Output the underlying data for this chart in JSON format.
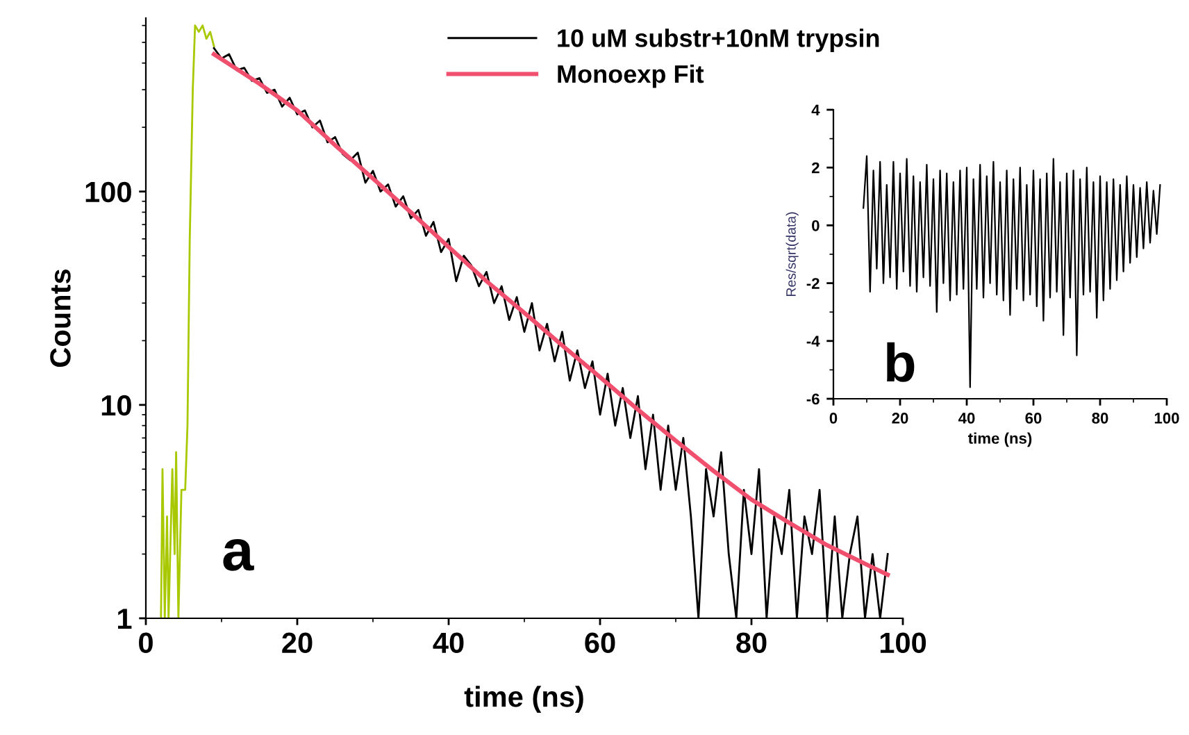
{
  "chart_data": [
    {
      "type": "line",
      "xlabel": "time (ns)",
      "ylabel": "Counts",
      "log": "y",
      "xlim": [
        0,
        100
      ],
      "ylim": [
        1,
        650
      ],
      "xticks": [
        0,
        20,
        40,
        60,
        80,
        100
      ],
      "yticks": [
        1,
        10,
        100
      ],
      "legend": "top right",
      "grid": false,
      "annotations": [
        "a"
      ],
      "series": [
        {
          "color": "#a8c800",
          "x": [
            2,
            2.2,
            2.5,
            2.8,
            3,
            3.5,
            3.8,
            4,
            4.3,
            4.7,
            5.2,
            5.5,
            5.8,
            6.2,
            6.5,
            7,
            7.5,
            8,
            8.5,
            9
          ],
          "values": [
            1,
            5,
            1,
            3,
            1,
            5,
            2,
            6,
            1,
            4,
            4,
            8,
            60,
            300,
            600,
            560,
            600,
            520,
            560,
            480
          ]
        },
        {
          "name": "10 uM substr+10nM trypsin",
          "color": "#000000",
          "x": [
            9,
            10,
            11,
            12,
            13,
            14,
            15,
            16,
            17,
            18,
            19,
            20,
            21,
            22,
            23,
            24,
            25,
            26,
            27,
            28,
            29,
            30,
            31,
            32,
            33,
            34,
            35,
            36,
            37,
            38,
            39,
            40,
            41,
            42,
            43,
            44,
            45,
            46,
            47,
            48,
            49,
            50,
            51,
            52,
            53,
            54,
            55,
            56,
            57,
            58,
            59,
            60,
            61,
            62,
            63,
            64,
            65,
            66,
            67,
            68,
            69,
            70,
            71,
            72,
            73,
            74,
            75,
            76,
            77,
            78,
            79,
            80,
            81,
            82,
            83,
            84,
            85,
            86,
            87,
            88,
            89,
            90,
            91,
            92,
            93,
            94,
            95,
            96,
            97,
            98
          ],
          "values": [
            470,
            420,
            440,
            370,
            380,
            330,
            340,
            290,
            300,
            250,
            275,
            230,
            240,
            200,
            215,
            170,
            180,
            150,
            140,
            152,
            110,
            125,
            100,
            108,
            85,
            95,
            75,
            82,
            62,
            72,
            52,
            60,
            38,
            50,
            45,
            36,
            42,
            30,
            36,
            25,
            32,
            22,
            30,
            18,
            24,
            16,
            22,
            13,
            18,
            12,
            16,
            9,
            14,
            8,
            12,
            7,
            11,
            5,
            9,
            4,
            8,
            4,
            7,
            3,
            1,
            5,
            3,
            6,
            2,
            1,
            4,
            2,
            5,
            1,
            3,
            2,
            4,
            1,
            3,
            2,
            4,
            1,
            3,
            1,
            2,
            3,
            1,
            2,
            1,
            2
          ]
        },
        {
          "name": "Monoexp Fit",
          "color": "#f0506e",
          "x": [
            9,
            15,
            20,
            25,
            30,
            35,
            40,
            45,
            50,
            55,
            60,
            65,
            70,
            75,
            80,
            85,
            90,
            95,
            98
          ],
          "values": [
            440,
            320,
            240,
            165,
            115,
            80,
            55,
            38,
            27,
            19,
            13.5,
            9.5,
            6.8,
            4.9,
            3.6,
            2.8,
            2.2,
            1.8,
            1.6
          ]
        }
      ]
    },
    {
      "type": "line",
      "xlabel": "time (ns)",
      "ylabel": "Res/sqrt(data)",
      "xlim": [
        0,
        100
      ],
      "ylim": [
        -6,
        4
      ],
      "xticks": [
        0,
        20,
        40,
        60,
        80,
        100
      ],
      "yticks": [
        -6,
        -4,
        -2,
        0,
        2,
        4
      ],
      "grid": false,
      "annotations": [
        "b"
      ],
      "series": [
        {
          "color": "#000000",
          "x": [
            9,
            10,
            11,
            12,
            13,
            14,
            15,
            16,
            17,
            18,
            19,
            20,
            21,
            22,
            23,
            24,
            25,
            26,
            27,
            28,
            29,
            30,
            31,
            32,
            33,
            34,
            35,
            36,
            37,
            38,
            39,
            40,
            41,
            42,
            43,
            44,
            45,
            46,
            47,
            48,
            49,
            50,
            51,
            52,
            53,
            54,
            55,
            56,
            57,
            58,
            59,
            60,
            61,
            62,
            63,
            64,
            65,
            66,
            67,
            68,
            69,
            70,
            71,
            72,
            73,
            74,
            75,
            76,
            77,
            78,
            79,
            80,
            81,
            82,
            83,
            84,
            85,
            86,
            87,
            88,
            89,
            90,
            91,
            92,
            93,
            94,
            95,
            96,
            97,
            98
          ],
          "values": [
            0.6,
            2.4,
            -2.3,
            1.9,
            -1.5,
            2.2,
            -2.0,
            1.4,
            -1.8,
            2.2,
            -2.2,
            1.8,
            -1.6,
            2.3,
            -2.1,
            1.7,
            -2.3,
            1.5,
            -1.8,
            2.1,
            -2.1,
            1.6,
            -3.0,
            1.9,
            -2.0,
            1.8,
            -2.6,
            1.5,
            -2.4,
            1.9,
            -2.2,
            2.0,
            -5.6,
            1.6,
            -2.2,
            2.1,
            -2.5,
            1.7,
            -2.0,
            2.2,
            -2.4,
            1.5,
            -2.6,
            1.9,
            -3.1,
            1.6,
            -2.2,
            2.0,
            -2.6,
            1.4,
            -2.4,
            1.9,
            -2.8,
            1.6,
            -3.3,
            1.8,
            -2.5,
            2.3,
            -2.3,
            1.5,
            -3.8,
            1.8,
            -2.5,
            1.9,
            -4.5,
            1.6,
            -2.4,
            2.0,
            -2.3,
            1.5,
            -3.2,
            1.7,
            -2.6,
            1.5,
            -2.2,
            1.6,
            -1.9,
            1.4,
            -1.6,
            1.7,
            -1.3,
            1.4,
            -1.1,
            1.3,
            -0.8,
            1.5,
            -0.6,
            1.2,
            -0.3,
            1.4
          ]
        }
      ]
    }
  ]
}
